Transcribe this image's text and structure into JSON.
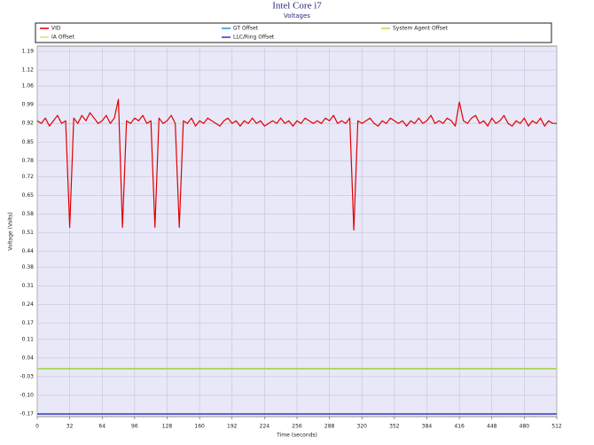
{
  "chart_data": {
    "type": "line",
    "title": "Intel Core i7",
    "subtitle": "Voltages",
    "xlabel": "Time (seconds)",
    "ylabel": "Voltage (Volts)",
    "grid": true,
    "xlim": [
      0,
      512
    ],
    "ylim": [
      -0.18,
      1.21
    ],
    "xticks": [
      0,
      32,
      64,
      96,
      128,
      160,
      192,
      224,
      256,
      288,
      320,
      352,
      384,
      416,
      448,
      480,
      512
    ],
    "yticks": [
      1.19,
      1.12,
      1.06,
      0.99,
      0.92,
      0.85,
      0.78,
      0.72,
      0.65,
      0.58,
      0.51,
      0.44,
      0.38,
      0.31,
      0.24,
      0.17,
      0.11,
      0.04,
      -0.03,
      {
        "value": -0.1,
        "label": "-0.10"
      },
      -0.17
    ],
    "x": [
      0,
      4,
      8,
      12,
      16,
      20,
      24,
      28,
      32,
      36,
      40,
      44,
      48,
      52,
      56,
      60,
      64,
      68,
      72,
      76,
      80,
      84,
      88,
      92,
      96,
      100,
      104,
      108,
      112,
      116,
      120,
      124,
      128,
      132,
      136,
      140,
      144,
      148,
      152,
      156,
      160,
      164,
      168,
      172,
      176,
      180,
      184,
      188,
      192,
      196,
      200,
      204,
      208,
      212,
      216,
      220,
      224,
      228,
      232,
      236,
      240,
      244,
      248,
      252,
      256,
      260,
      264,
      268,
      272,
      276,
      280,
      284,
      288,
      292,
      296,
      300,
      304,
      308,
      312,
      316,
      320,
      324,
      328,
      332,
      336,
      340,
      344,
      348,
      352,
      356,
      360,
      364,
      368,
      372,
      376,
      380,
      384,
      388,
      392,
      396,
      400,
      404,
      408,
      412,
      416,
      420,
      424,
      428,
      432,
      436,
      440,
      444,
      448,
      452,
      456,
      460,
      464,
      468,
      472,
      476,
      480,
      484,
      488,
      492,
      496,
      500,
      504,
      508,
      512
    ],
    "series": [
      {
        "name": "VID",
        "color": "#e00000",
        "values": [
          0.93,
          0.92,
          0.94,
          0.91,
          0.93,
          0.95,
          0.92,
          0.93,
          0.53,
          0.94,
          0.92,
          0.95,
          0.93,
          0.96,
          0.94,
          0.92,
          0.93,
          0.95,
          0.92,
          0.94,
          1.01,
          0.53,
          0.93,
          0.92,
          0.94,
          0.93,
          0.95,
          0.92,
          0.93,
          0.53,
          0.94,
          0.92,
          0.93,
          0.95,
          0.92,
          0.53,
          0.93,
          0.92,
          0.94,
          0.91,
          0.93,
          0.92,
          0.94,
          0.93,
          0.92,
          0.91,
          0.93,
          0.94,
          0.92,
          0.93,
          0.91,
          0.93,
          0.92,
          0.94,
          0.92,
          0.93,
          0.91,
          0.92,
          0.93,
          0.92,
          0.94,
          0.92,
          0.93,
          0.91,
          0.93,
          0.92,
          0.94,
          0.93,
          0.92,
          0.93,
          0.92,
          0.94,
          0.93,
          0.95,
          0.92,
          0.93,
          0.92,
          0.94,
          0.52,
          0.93,
          0.92,
          0.93,
          0.94,
          0.92,
          0.91,
          0.93,
          0.92,
          0.94,
          0.93,
          0.92,
          0.93,
          0.91,
          0.93,
          0.92,
          0.94,
          0.92,
          0.93,
          0.95,
          0.92,
          0.93,
          0.92,
          0.94,
          0.93,
          0.91,
          1.0,
          0.93,
          0.92,
          0.94,
          0.95,
          0.92,
          0.93,
          0.91,
          0.94,
          0.92,
          0.93,
          0.95,
          0.92,
          0.91,
          0.93,
          0.92,
          0.94,
          0.91,
          0.93,
          0.92,
          0.94,
          0.91,
          0.93,
          0.92,
          0.92
        ]
      },
      {
        "name": "GT Offset",
        "color": "#2f8fd0",
        "values": [
          0,
          0,
          0,
          0,
          0,
          0,
          0,
          0,
          0,
          0,
          0,
          0,
          0,
          0,
          0,
          0,
          0,
          0,
          0,
          0,
          0,
          0,
          0,
          0,
          0,
          0,
          0,
          0,
          0,
          0,
          0,
          0,
          0,
          0,
          0,
          0,
          0,
          0,
          0,
          0,
          0,
          0,
          0,
          0,
          0,
          0,
          0,
          0,
          0,
          0,
          0,
          0,
          0,
          0,
          0,
          0,
          0,
          0,
          0,
          0,
          0,
          0,
          0,
          0,
          0,
          0,
          0,
          0,
          0,
          0,
          0,
          0,
          0,
          0,
          0,
          0,
          0,
          0,
          0,
          0,
          0,
          0,
          0,
          0,
          0,
          0,
          0,
          0,
          0,
          0,
          0,
          0,
          0,
          0,
          0,
          0,
          0,
          0,
          0,
          0,
          0,
          0,
          0,
          0,
          0,
          0,
          0,
          0,
          0,
          0,
          0,
          0,
          0,
          0,
          0,
          0,
          0,
          0,
          0,
          0,
          0,
          0,
          0,
          0,
          0,
          0,
          0,
          0,
          0
        ]
      },
      {
        "name": "System Agent Offset",
        "color": "#b4e04a",
        "values": [
          0,
          0,
          0,
          0,
          0,
          0,
          0,
          0,
          0,
          0,
          0,
          0,
          0,
          0,
          0,
          0,
          0,
          0,
          0,
          0,
          0,
          0,
          0,
          0,
          0,
          0,
          0,
          0,
          0,
          0,
          0,
          0,
          0,
          0,
          0,
          0,
          0,
          0,
          0,
          0,
          0,
          0,
          0,
          0,
          0,
          0,
          0,
          0,
          0,
          0,
          0,
          0,
          0,
          0,
          0,
          0,
          0,
          0,
          0,
          0,
          0,
          0,
          0,
          0,
          0,
          0,
          0,
          0,
          0,
          0,
          0,
          0,
          0,
          0,
          0,
          0,
          0,
          0,
          0,
          0,
          0,
          0,
          0,
          0,
          0,
          0,
          0,
          0,
          0,
          0,
          0,
          0,
          0,
          0,
          0,
          0,
          0,
          0,
          0,
          0,
          0,
          0,
          0,
          0,
          0,
          0,
          0,
          0,
          0,
          0,
          0,
          0,
          0,
          0,
          0,
          0,
          0,
          0,
          0,
          0,
          0,
          0,
          0,
          0,
          0,
          0,
          0,
          0,
          0
        ]
      },
      {
        "name": "IA Offset",
        "color": "#e8e060",
        "values": [
          0,
          0,
          0,
          0,
          0,
          0,
          0,
          0,
          0,
          0,
          0,
          0,
          0,
          0,
          0,
          0,
          0,
          0,
          0,
          0,
          0,
          0,
          0,
          0,
          0,
          0,
          0,
          0,
          0,
          0,
          0,
          0,
          0,
          0,
          0,
          0,
          0,
          0,
          0,
          0,
          0,
          0,
          0,
          0,
          0,
          0,
          0,
          0,
          0,
          0,
          0,
          0,
          0,
          0,
          0,
          0,
          0,
          0,
          0,
          0,
          0,
          0,
          0,
          0,
          0,
          0,
          0,
          0,
          0,
          0,
          0,
          0,
          0,
          0,
          0,
          0,
          0,
          0,
          0,
          0,
          0,
          0,
          0,
          0,
          0,
          0,
          0,
          0,
          0,
          0,
          0,
          0,
          0,
          0,
          0,
          0,
          0,
          0,
          0,
          0,
          0,
          0,
          0,
          0,
          0,
          0,
          0,
          0,
          0,
          0,
          0,
          0,
          0,
          0,
          0,
          0,
          0,
          0,
          0,
          0,
          0,
          0,
          0,
          0,
          0,
          0,
          0,
          0,
          0
        ]
      },
      {
        "name": "LLC/Ring Offset",
        "color": "#3535c0",
        "values": [
          -0.17,
          -0.17,
          -0.17,
          -0.17,
          -0.17,
          -0.17,
          -0.17,
          -0.17,
          -0.17,
          -0.17,
          -0.17,
          -0.17,
          -0.17,
          -0.17,
          -0.17,
          -0.17,
          -0.17,
          -0.17,
          -0.17,
          -0.17,
          -0.17,
          -0.17,
          -0.17,
          -0.17,
          -0.17,
          -0.17,
          -0.17,
          -0.17,
          -0.17,
          -0.17,
          -0.17,
          -0.17,
          -0.17,
          -0.17,
          -0.17,
          -0.17,
          -0.17,
          -0.17,
          -0.17,
          -0.17,
          -0.17,
          -0.17,
          -0.17,
          -0.17,
          -0.17,
          -0.17,
          -0.17,
          -0.17,
          -0.17,
          -0.17,
          -0.17,
          -0.17,
          -0.17,
          -0.17,
          -0.17,
          -0.17,
          -0.17,
          -0.17,
          -0.17,
          -0.17,
          -0.17,
          -0.17,
          -0.17,
          -0.17,
          -0.17,
          -0.17,
          -0.17,
          -0.17,
          -0.17,
          -0.17,
          -0.17,
          -0.17,
          -0.17,
          -0.17,
          -0.17,
          -0.17,
          -0.17,
          -0.17,
          -0.17,
          -0.17,
          -0.17,
          -0.17,
          -0.17,
          -0.17,
          -0.17,
          -0.17,
          -0.17,
          -0.17,
          -0.17,
          -0.17,
          -0.17,
          -0.17,
          -0.17,
          -0.17,
          -0.17,
          -0.17,
          -0.17,
          -0.17,
          -0.17,
          -0.17,
          -0.17,
          -0.17,
          -0.17,
          -0.17,
          -0.17,
          -0.17,
          -0.17,
          -0.17,
          -0.17,
          -0.17,
          -0.17,
          -0.17,
          -0.17,
          -0.17,
          -0.17,
          -0.17,
          -0.17,
          -0.17,
          -0.17,
          -0.17,
          -0.17,
          -0.17,
          -0.17,
          -0.17,
          -0.17,
          -0.17,
          -0.17,
          -0.17,
          -0.17
        ]
      }
    ]
  }
}
